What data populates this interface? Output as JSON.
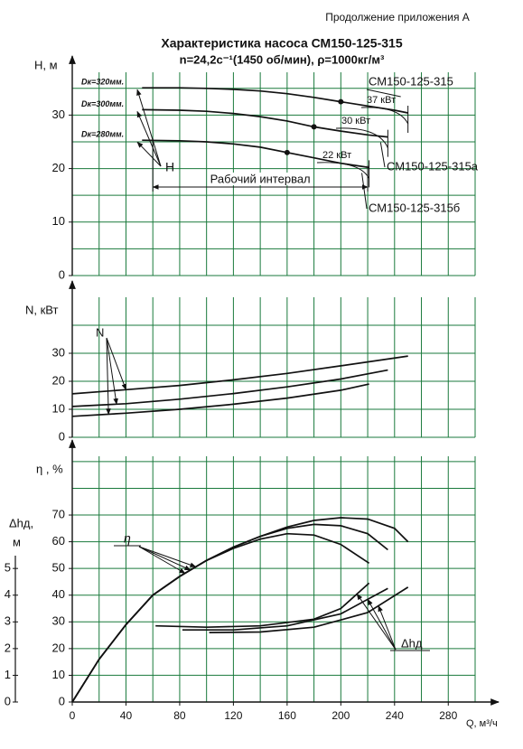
{
  "header": {
    "note": "Продолжение приложения А"
  },
  "chart_data": [
    {
      "type": "line",
      "title": "Характеристика насоса СМ150-125-315",
      "subtitle": "n=24,2с⁻¹(1450 об/мин), ρ=1000кг/м³",
      "ylabel": "H, м",
      "xlim": [
        0,
        300
      ],
      "ylim": [
        0,
        38
      ],
      "yticks": [
        0,
        10,
        20,
        30
      ],
      "ygrid": [
        0,
        5,
        10,
        15,
        20,
        25,
        30,
        35
      ],
      "grid": true,
      "pointer_label": "H",
      "interval": {
        "label": "Рабочий интервал",
        "x": [
          60,
          220
        ]
      },
      "series": [
        {
          "name": "СМ150-125-315",
          "impeller": "Dк=320мм.",
          "power": "37 кВт",
          "color": "#111",
          "x": [
            52,
            80,
            100,
            120,
            140,
            160,
            180,
            200,
            220,
            240,
            250
          ],
          "values": [
            35.1,
            35.1,
            35.0,
            34.8,
            34.5,
            34.0,
            33.3,
            32.5,
            31.7,
            30.9,
            30.4
          ],
          "duty_point": {
            "x": 200,
            "y": 32.5
          }
        },
        {
          "name": "СМ150-125-315а",
          "impeller": "Dк=300мм.",
          "power": "30 кВт",
          "color": "#111",
          "x": [
            52,
            80,
            100,
            120,
            140,
            160,
            180,
            200,
            220,
            235
          ],
          "values": [
            31.0,
            30.9,
            30.7,
            30.3,
            29.7,
            28.9,
            27.8,
            27.0,
            26.3,
            25.9
          ],
          "duty_point": {
            "x": 180,
            "y": 27.8
          }
        },
        {
          "name": "СМ150-125-315б",
          "impeller": "Dк=280мм.",
          "power": "22 кВт",
          "color": "#111",
          "x": [
            52,
            80,
            100,
            120,
            140,
            160,
            180,
            200,
            221
          ],
          "values": [
            25.3,
            25.2,
            25.0,
            24.6,
            24.0,
            23.0,
            22.0,
            21.0,
            20.2
          ],
          "duty_point": {
            "x": 160,
            "y": 23.0
          }
        }
      ]
    },
    {
      "type": "line",
      "ylabel": "N, кВт",
      "xlim": [
        0,
        300
      ],
      "ylim": [
        0,
        50
      ],
      "yticks": [
        0,
        10,
        20,
        30
      ],
      "ygrid": [
        0,
        10,
        20,
        30,
        40
      ],
      "grid": true,
      "pointer_label": "N",
      "series": [
        {
          "color": "#111",
          "x": [
            0,
            40,
            80,
            120,
            160,
            200,
            250
          ],
          "values": [
            15.5,
            17,
            18.5,
            20.5,
            22.8,
            25.5,
            29
          ]
        },
        {
          "color": "#111",
          "x": [
            0,
            40,
            80,
            120,
            160,
            200,
            235
          ],
          "values": [
            11,
            12,
            13.6,
            15.6,
            18,
            20.8,
            24
          ]
        },
        {
          "color": "#111",
          "x": [
            0,
            40,
            80,
            120,
            160,
            200,
            221
          ],
          "values": [
            7.5,
            8.6,
            10,
            11.8,
            14,
            16.8,
            19
          ]
        }
      ]
    },
    {
      "type": "line",
      "ylabel": "η , %",
      "y2label": [
        "Δhд,",
        "м"
      ],
      "xlabel": "Q, м³/ч",
      "xlim": [
        0,
        300
      ],
      "xticks": [
        0,
        40,
        80,
        120,
        160,
        200,
        240,
        280
      ],
      "xgrid": [
        0,
        20,
        40,
        60,
        80,
        100,
        120,
        140,
        160,
        180,
        200,
        220,
        240,
        260,
        280,
        300
      ],
      "ylim": [
        0,
        92
      ],
      "yticks": [
        0,
        10,
        20,
        30,
        40,
        50,
        60,
        70
      ],
      "ygrid": [
        0,
        10,
        20,
        30,
        40,
        50,
        60,
        70,
        80,
        90
      ],
      "y2lim": [
        0,
        9.2
      ],
      "y2ticks": [
        0,
        1,
        2,
        3,
        4,
        5
      ],
      "grid": true,
      "pointer_label": "η",
      "y2pointer_label": "Δhд",
      "series": [
        {
          "color": "#111",
          "x": [
            0,
            20,
            40,
            60,
            80,
            100,
            120,
            140,
            160,
            180,
            200,
            220,
            240,
            250
          ],
          "values": [
            0,
            16,
            29,
            40,
            47,
            53,
            58,
            62,
            65.5,
            68,
            69,
            68.5,
            65,
            60
          ]
        },
        {
          "color": "#111",
          "x": [
            0,
            20,
            40,
            60,
            80,
            100,
            120,
            140,
            160,
            180,
            200,
            220,
            235
          ],
          "values": [
            0,
            16,
            29,
            40,
            47,
            53,
            58,
            62,
            65,
            66.5,
            66,
            63,
            57
          ]
        },
        {
          "color": "#111",
          "x": [
            0,
            20,
            40,
            60,
            80,
            100,
            120,
            140,
            160,
            180,
            200,
            221
          ],
          "values": [
            0,
            16,
            29,
            40,
            47,
            53,
            57.5,
            61,
            63,
            62.5,
            59,
            52
          ]
        },
        {
          "color": "#111",
          "axis": "y2",
          "x": [
            62,
            100,
            140,
            180,
            200,
            221
          ],
          "values": [
            2.85,
            2.8,
            2.85,
            3.1,
            3.5,
            4.45
          ]
        },
        {
          "color": "#111",
          "axis": "y2",
          "x": [
            82,
            120,
            160,
            200,
            235
          ],
          "values": [
            2.7,
            2.7,
            2.85,
            3.3,
            4.25
          ]
        },
        {
          "color": "#111",
          "axis": "y2",
          "x": [
            102,
            140,
            180,
            220,
            250
          ],
          "values": [
            2.6,
            2.62,
            2.8,
            3.35,
            4.3
          ]
        }
      ]
    }
  ]
}
